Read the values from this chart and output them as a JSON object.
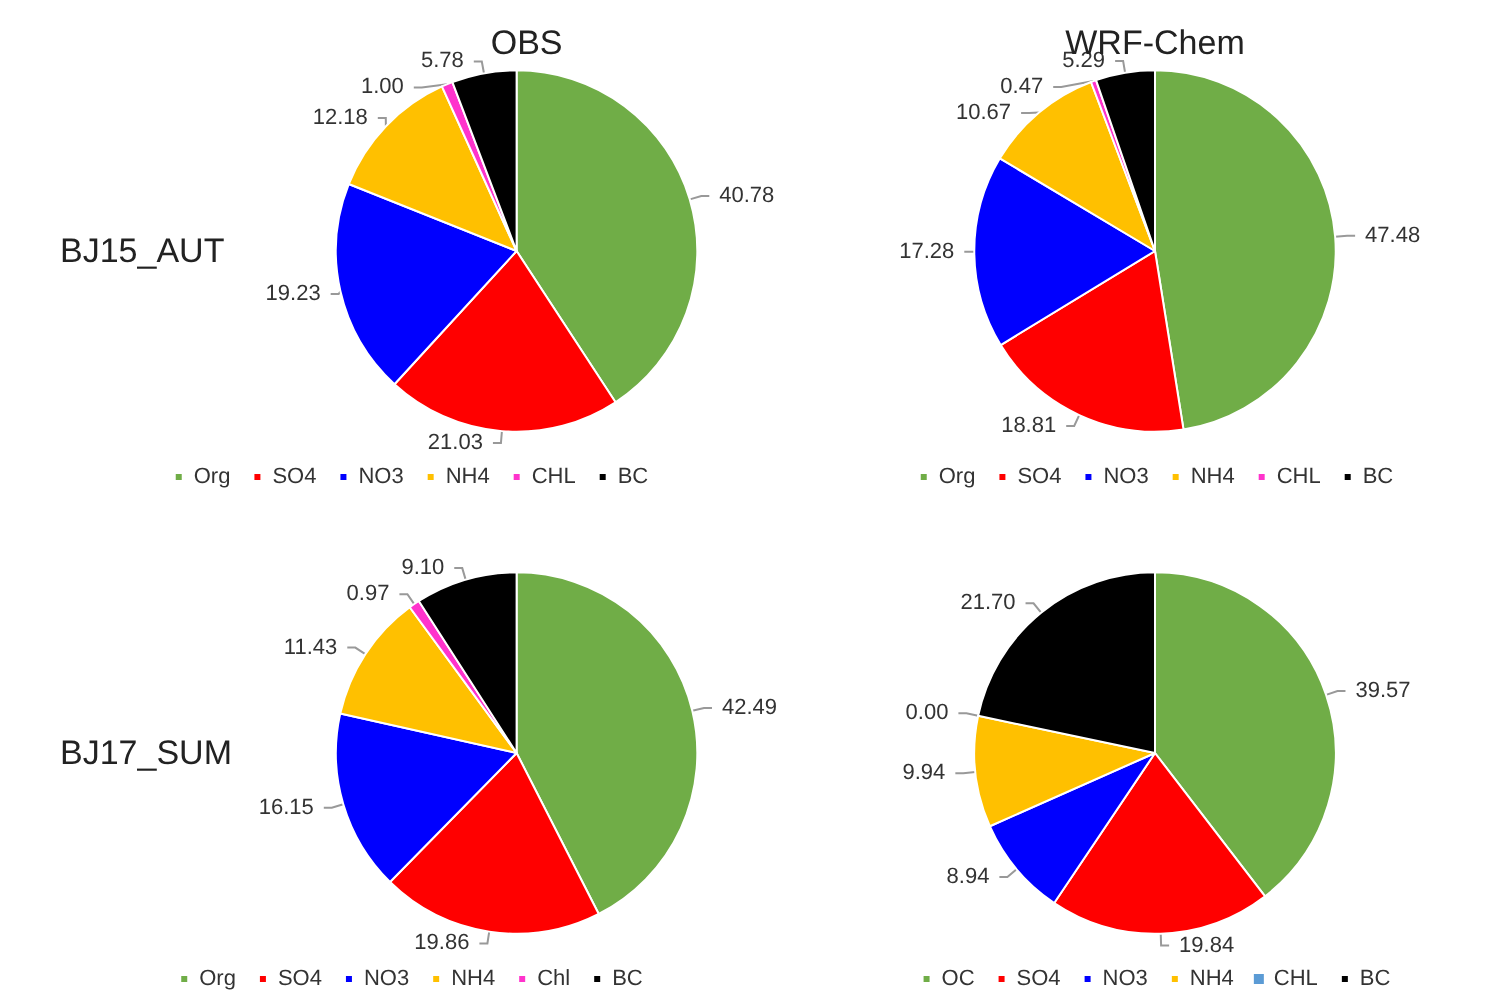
{
  "chart_data": [
    {
      "type": "pie",
      "title": "OBS",
      "ylabel": "BJ15_AUT",
      "categories": [
        "Org",
        "SO4",
        "NO3",
        "NH4",
        "CHL",
        "BC"
      ],
      "values": [
        40.78,
        21.03,
        19.23,
        12.18,
        1.0,
        5.78
      ],
      "value_labels": [
        "40.78",
        "21.03",
        "19.23",
        "12.18",
        "1.00",
        "5.78"
      ],
      "colors": [
        "#70ad47",
        "#ff0000",
        "#0000ff",
        "#ffc000",
        "#ff33cc",
        "#000000"
      ],
      "legend": "bottom"
    },
    {
      "type": "pie",
      "title": "WRF-Chem",
      "categories": [
        "Org",
        "SO4",
        "NO3",
        "NH4",
        "CHL",
        "BC"
      ],
      "values": [
        47.48,
        18.81,
        17.28,
        10.67,
        0.47,
        5.29
      ],
      "value_labels": [
        "47.48",
        "18.81",
        "17.28",
        "10.67",
        "0.47",
        "5.29"
      ],
      "colors": [
        "#70ad47",
        "#ff0000",
        "#0000ff",
        "#ffc000",
        "#ff33cc",
        "#000000"
      ],
      "legend": "bottom"
    },
    {
      "type": "pie",
      "ylabel": "BJ17_SUM",
      "categories": [
        "Org",
        "SO4",
        "NO3",
        "NH4",
        "Chl",
        "BC"
      ],
      "values": [
        42.49,
        19.86,
        16.15,
        11.43,
        0.97,
        9.1
      ],
      "value_labels": [
        "42.49",
        "19.86",
        "16.15",
        "11.43",
        "0.97",
        "9.10"
      ],
      "colors": [
        "#70ad47",
        "#ff0000",
        "#0000ff",
        "#ffc000",
        "#ff33cc",
        "#000000"
      ],
      "legend": "bottom"
    },
    {
      "type": "pie",
      "categories": [
        "OC",
        "SO4",
        "NO3",
        "NH4",
        "CHL",
        "BC"
      ],
      "values": [
        39.57,
        19.84,
        8.94,
        9.94,
        0.0,
        21.7
      ],
      "value_labels": [
        "39.57",
        "19.84",
        "8.94",
        "9.94",
        "0.00",
        "21.70"
      ],
      "colors": [
        "#70ad47",
        "#ff0000",
        "#0000ff",
        "#ffc000",
        "#5b9bd5",
        "#000000"
      ],
      "legend": "bottom"
    }
  ]
}
